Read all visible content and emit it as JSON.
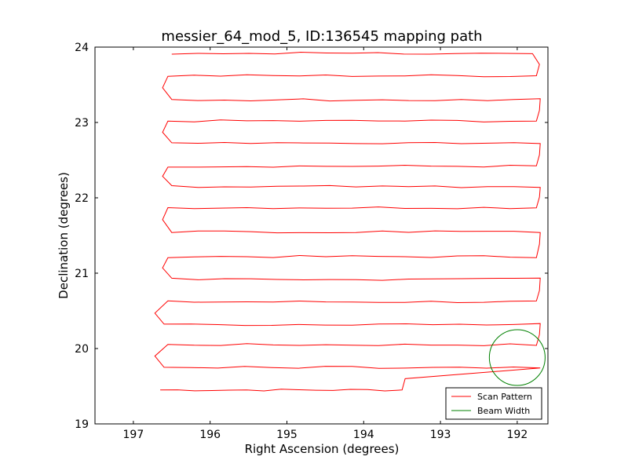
{
  "chart_data": {
    "type": "line",
    "title": "messier_64_mod_5, ID:136545 mapping path",
    "xlabel": "Right Ascension (degrees)",
    "ylabel": "Declination (degrees)",
    "xlim": [
      197.5,
      191.6
    ],
    "ylim": [
      19,
      24
    ],
    "x_inverted": true,
    "xticks": [
      197,
      196,
      195,
      194,
      193,
      192
    ],
    "yticks": [
      19,
      20,
      21,
      22,
      23,
      24
    ],
    "grid": false,
    "legend_position": "lower-right",
    "series": [
      {
        "name": "Scan Pattern",
        "color": "#ff0000",
        "type": "line",
        "rows": [
          {
            "y": 19.45,
            "x_start": 196.65,
            "x_end": 193.5
          },
          {
            "y": 19.75,
            "x_start": 196.6,
            "x_end": 191.7
          },
          {
            "y": 20.05,
            "x_start": 196.55,
            "x_end": 191.75
          },
          {
            "y": 20.32,
            "x_start": 196.6,
            "x_end": 191.7
          },
          {
            "y": 20.62,
            "x_start": 196.55,
            "x_end": 191.75
          },
          {
            "y": 20.92,
            "x_start": 196.5,
            "x_end": 191.7
          },
          {
            "y": 21.22,
            "x_start": 196.55,
            "x_end": 191.75
          },
          {
            "y": 21.55,
            "x_start": 196.5,
            "x_end": 191.7
          },
          {
            "y": 21.87,
            "x_start": 196.55,
            "x_end": 191.75
          },
          {
            "y": 22.15,
            "x_start": 196.5,
            "x_end": 191.7
          },
          {
            "y": 22.42,
            "x_start": 196.55,
            "x_end": 191.75
          },
          {
            "y": 22.72,
            "x_start": 196.5,
            "x_end": 191.7
          },
          {
            "y": 23.02,
            "x_start": 196.55,
            "x_end": 191.75
          },
          {
            "y": 23.3,
            "x_start": 196.5,
            "x_end": 191.7
          },
          {
            "y": 23.62,
            "x_start": 196.55,
            "x_end": 191.75
          },
          {
            "y": 23.92,
            "x_start": 196.5,
            "x_end": 191.8
          }
        ]
      },
      {
        "name": "Beam Width",
        "color": "#008000",
        "type": "circle",
        "center": [
          192.0,
          19.88
        ],
        "radius_y": 0.37
      }
    ]
  }
}
